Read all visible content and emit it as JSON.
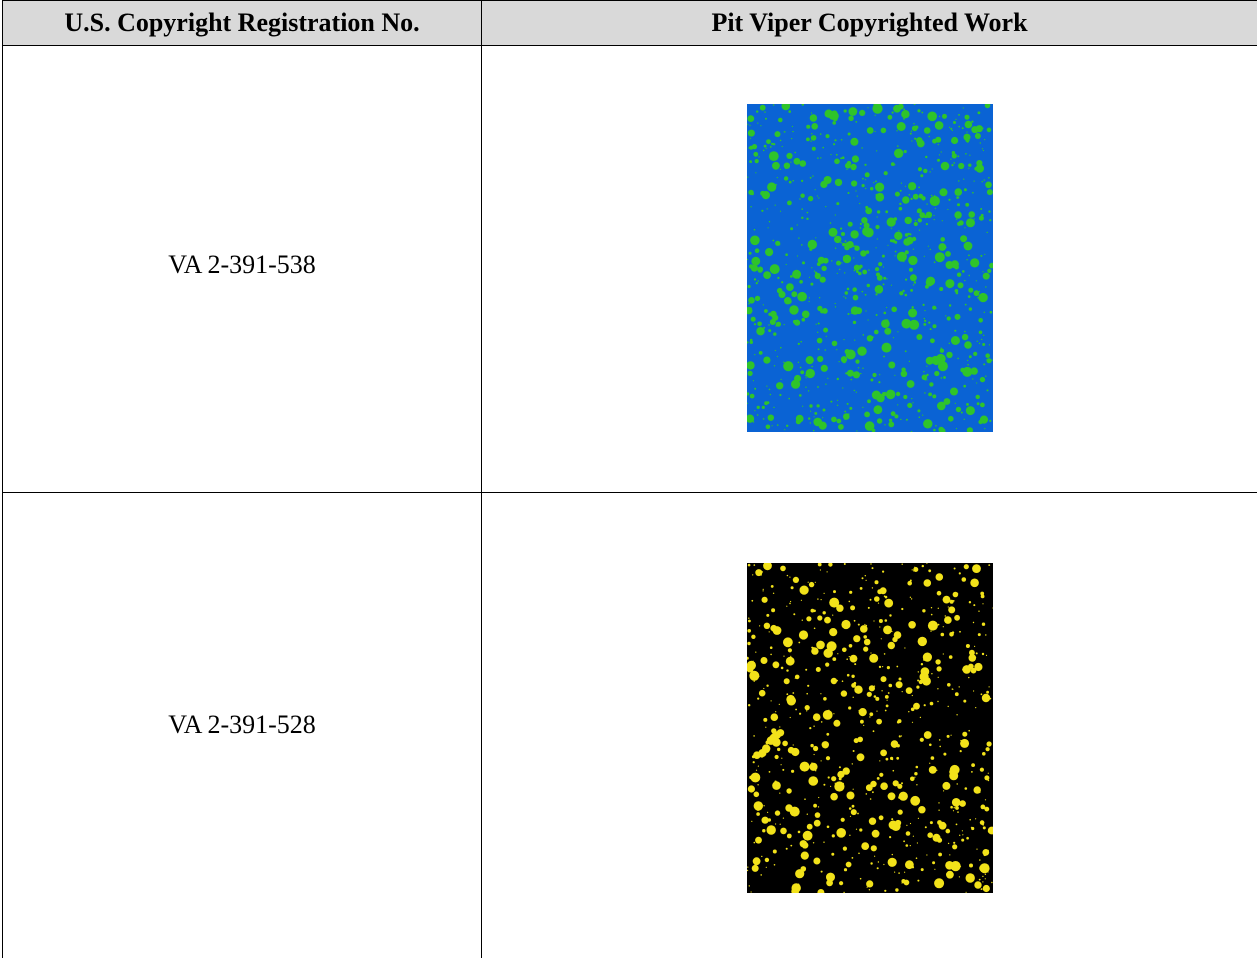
{
  "table": {
    "header": [
      "U.S. Copyright Registration No.",
      "Pit Viper Copyrighted Work"
    ],
    "rows": [
      [
        "VA 2-391-538"
      ],
      [
        "VA 2-391-528"
      ]
    ]
  }
}
